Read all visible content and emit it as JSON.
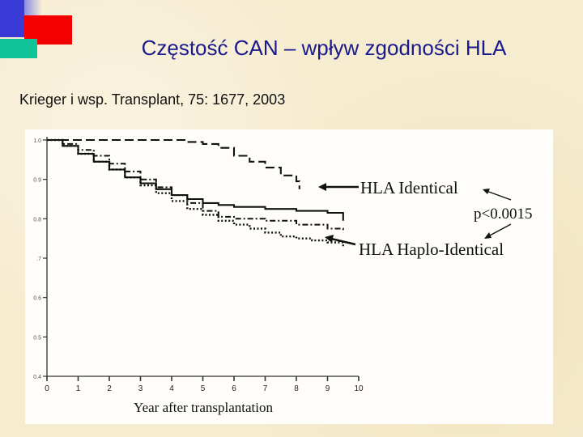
{
  "slide": {
    "title": "Częstość CAN – wpływ zgodności HLA",
    "citation": "Krieger i wsp. Transplant, 75: 1677, 2003"
  },
  "colors": {
    "title": "#1a1a8c",
    "deco_blue": "#3a3ad6",
    "deco_red": "#f40000",
    "deco_teal": "#10c49a",
    "curve": "#111111"
  },
  "chart_data": {
    "type": "line",
    "xlabel": "Year after transplantation",
    "ylabel": "",
    "xlim": [
      0,
      10
    ],
    "ylim": [
      0.4,
      1.0
    ],
    "x_ticks": [
      "0",
      "1",
      "2",
      "3",
      "4",
      "5",
      "6",
      "7",
      "8",
      "9",
      "10"
    ],
    "y_ticks": [
      {
        "value": 1.0,
        "label": "1.0"
      },
      {
        "value": 0.9,
        "label": "0.9"
      },
      {
        "value": 0.8,
        "label": "0.8"
      },
      {
        "value": 0.7,
        "label": ".7"
      },
      {
        "value": 0.6,
        "label": "0.6"
      },
      {
        "value": 0.5,
        "label": "0.5"
      },
      {
        "value": 0.4,
        "label": "0.4"
      }
    ],
    "series": [
      {
        "name": "HLA Identical",
        "style": "dashed",
        "x": [
          0,
          1,
          2,
          3,
          4,
          4.5,
          5,
          5.5,
          6,
          6.5,
          7,
          7.5,
          8,
          8.1
        ],
        "y": [
          1.0,
          1.0,
          1.0,
          1.0,
          1.0,
          0.995,
          0.99,
          0.98,
          0.96,
          0.945,
          0.93,
          0.91,
          0.895,
          0.875
        ]
      },
      {
        "name": "",
        "style": "solid",
        "x": [
          0,
          0.5,
          1,
          1.5,
          2,
          2.5,
          3,
          3.5,
          4,
          4.5,
          5,
          5.5,
          6,
          7,
          8,
          9,
          9.5
        ],
        "y": [
          1.0,
          0.985,
          0.965,
          0.945,
          0.925,
          0.905,
          0.89,
          0.875,
          0.86,
          0.85,
          0.84,
          0.835,
          0.83,
          0.825,
          0.82,
          0.815,
          0.795
        ]
      },
      {
        "name": "",
        "style": "dashdot",
        "x": [
          0,
          0.5,
          1,
          1.5,
          2,
          2.5,
          3,
          3.5,
          4,
          4.5,
          5,
          5.5,
          6,
          7,
          8,
          9,
          9.5
        ],
        "y": [
          1.0,
          0.99,
          0.975,
          0.96,
          0.94,
          0.92,
          0.9,
          0.88,
          0.86,
          0.84,
          0.82,
          0.805,
          0.8,
          0.795,
          0.785,
          0.775,
          0.765
        ]
      },
      {
        "name": "HLA Haplo-Identical",
        "style": "dotted",
        "x": [
          0,
          0.5,
          1,
          1.5,
          2,
          2.5,
          3,
          3.5,
          4,
          4.5,
          5,
          5.5,
          6,
          6.5,
          7,
          7.5,
          8,
          8.5,
          9,
          9.5
        ],
        "y": [
          1.0,
          0.985,
          0.965,
          0.945,
          0.925,
          0.905,
          0.885,
          0.865,
          0.845,
          0.825,
          0.81,
          0.795,
          0.785,
          0.775,
          0.765,
          0.755,
          0.75,
          0.745,
          0.74,
          0.73
        ]
      }
    ],
    "annotations": [
      {
        "text": "HLA Identical",
        "target_series": "HLA Identical"
      },
      {
        "text": "HLA Haplo-Identical",
        "target_series": "HLA Haplo-Identical"
      },
      {
        "text": "p<0.0015"
      }
    ],
    "grid": false,
    "legend": "none"
  }
}
